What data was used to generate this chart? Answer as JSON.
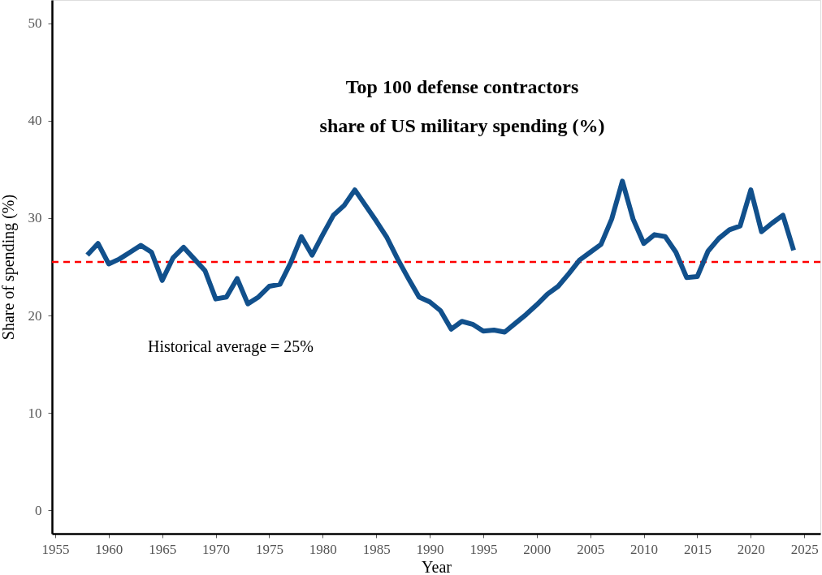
{
  "chart_data": {
    "type": "line",
    "title": "Top 100 defense contractors\nshare of US military spending (%)",
    "xlabel": "Year",
    "ylabel": "Share of spending (%)",
    "x": [
      1958,
      1959,
      1960,
      1961,
      1962,
      1963,
      1964,
      1965,
      1966,
      1967,
      1968,
      1969,
      1970,
      1971,
      1972,
      1973,
      1974,
      1975,
      1976,
      1977,
      1978,
      1979,
      1980,
      1981,
      1982,
      1983,
      1984,
      1985,
      1986,
      1987,
      1988,
      1989,
      1990,
      1991,
      1992,
      1993,
      1994,
      1995,
      1996,
      1997,
      1998,
      1999,
      2000,
      2001,
      2002,
      2003,
      2004,
      2005,
      2006,
      2007,
      2008,
      2009,
      2010,
      2011,
      2012,
      2013,
      2014,
      2015,
      2016,
      2017,
      2018,
      2019,
      2020,
      2021,
      2022,
      2023,
      2024
    ],
    "series": [
      {
        "color": "#11508c",
        "values": [
          26.2,
          27.4,
          25.3,
          25.8,
          26.5,
          27.2,
          26.5,
          23.6,
          25.9,
          27.0,
          25.8,
          24.6,
          21.7,
          21.9,
          23.8,
          21.2,
          21.9,
          23.0,
          23.2,
          25.4,
          28.1,
          26.2,
          28.3,
          30.3,
          31.3,
          32.9,
          31.3,
          29.7,
          28.0,
          25.8,
          23.8,
          21.9,
          21.4,
          20.5,
          18.6,
          19.4,
          19.1,
          18.4,
          18.5,
          18.3,
          19.2,
          20.1,
          21.1,
          22.2,
          23.0,
          24.3,
          25.7,
          26.5,
          27.3,
          29.9,
          33.8,
          29.9,
          27.4,
          28.3,
          28.1,
          26.5,
          23.9,
          24.0,
          26.6,
          27.9,
          28.8,
          29.2,
          32.9,
          28.6,
          29.5,
          30.3,
          26.7
        ]
      }
    ],
    "xlim": [
      1954.7,
      2026.5
    ],
    "ylim": [
      -2.4,
      52.4
    ],
    "xticks": [
      1955,
      1960,
      1965,
      1970,
      1975,
      1980,
      1985,
      1990,
      1995,
      2000,
      2005,
      2010,
      2015,
      2020,
      2025
    ],
    "yticks": [
      0,
      10,
      20,
      30,
      40,
      50
    ],
    "ref_lines": [
      {
        "axis": "y",
        "value": 25.5,
        "color": "#ff0000",
        "line_style": "dashed"
      }
    ],
    "annotations": [
      "Historical average = 25%"
    ],
    "grid": false,
    "marker": "none",
    "line_style": "solid"
  }
}
